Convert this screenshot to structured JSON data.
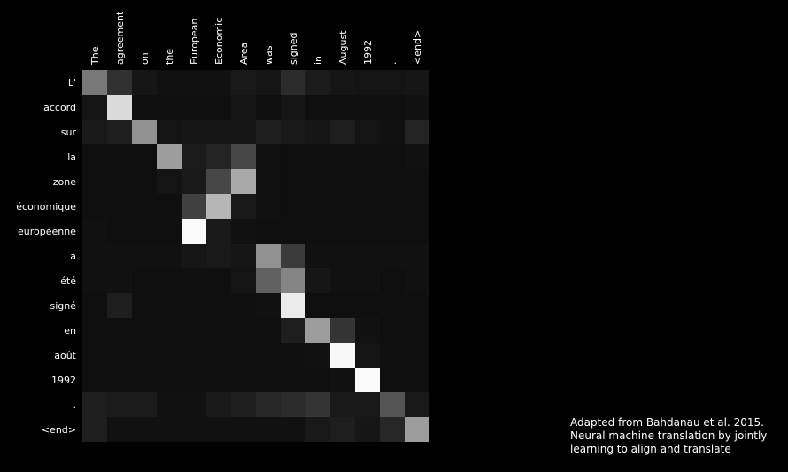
{
  "chart_data": {
    "type": "heatmap",
    "title": "",
    "x_categories": [
      "The",
      "agreement",
      "on",
      "the",
      "European",
      "Economic",
      "Area",
      "was",
      "signed",
      "in",
      "August",
      "1992",
      ".",
      "<end>"
    ],
    "y_categories": [
      "L'",
      "accord",
      "sur",
      "la",
      "zone",
      "économique",
      "européenne",
      "a",
      "été",
      "signé",
      "en",
      "août",
      "1992",
      ".",
      "<end>"
    ],
    "value_range": [
      0,
      1
    ],
    "colormap": "grayscale (black = 0, white = 1)",
    "values": [
      [
        0.45,
        0.16,
        0.05,
        0.03,
        0.03,
        0.03,
        0.06,
        0.05,
        0.14,
        0.07,
        0.05,
        0.04,
        0.04,
        0.05
      ],
      [
        0.04,
        0.85,
        0.02,
        0.02,
        0.02,
        0.02,
        0.04,
        0.02,
        0.05,
        0.02,
        0.02,
        0.02,
        0.02,
        0.03
      ],
      [
        0.06,
        0.08,
        0.55,
        0.04,
        0.05,
        0.05,
        0.05,
        0.08,
        0.06,
        0.05,
        0.08,
        0.04,
        0.03,
        0.1
      ],
      [
        0.02,
        0.02,
        0.02,
        0.6,
        0.07,
        0.1,
        0.25,
        0.03,
        0.02,
        0.02,
        0.02,
        0.02,
        0.02,
        0.03
      ],
      [
        0.02,
        0.02,
        0.02,
        0.04,
        0.06,
        0.25,
        0.65,
        0.03,
        0.02,
        0.02,
        0.02,
        0.02,
        0.02,
        0.02
      ],
      [
        0.02,
        0.02,
        0.02,
        0.02,
        0.22,
        0.7,
        0.06,
        0.03,
        0.02,
        0.02,
        0.02,
        0.02,
        0.02,
        0.02
      ],
      [
        0.03,
        0.02,
        0.02,
        0.02,
        0.98,
        0.06,
        0.03,
        0.02,
        0.02,
        0.02,
        0.02,
        0.02,
        0.02,
        0.02
      ],
      [
        0.03,
        0.03,
        0.03,
        0.03,
        0.05,
        0.06,
        0.05,
        0.55,
        0.2,
        0.03,
        0.03,
        0.03,
        0.03,
        0.03
      ],
      [
        0.03,
        0.03,
        0.02,
        0.02,
        0.02,
        0.02,
        0.04,
        0.35,
        0.5,
        0.05,
        0.03,
        0.03,
        0.02,
        0.03
      ],
      [
        0.02,
        0.08,
        0.02,
        0.02,
        0.02,
        0.02,
        0.02,
        0.03,
        0.92,
        0.02,
        0.02,
        0.02,
        0.02,
        0.02
      ],
      [
        0.02,
        0.02,
        0.02,
        0.02,
        0.02,
        0.02,
        0.02,
        0.02,
        0.08,
        0.6,
        0.17,
        0.03,
        0.02,
        0.02
      ],
      [
        0.02,
        0.02,
        0.02,
        0.02,
        0.02,
        0.02,
        0.02,
        0.02,
        0.02,
        0.03,
        0.97,
        0.04,
        0.02,
        0.02
      ],
      [
        0.02,
        0.02,
        0.02,
        0.02,
        0.02,
        0.02,
        0.02,
        0.02,
        0.02,
        0.02,
        0.03,
        0.98,
        0.02,
        0.02
      ],
      [
        0.08,
        0.07,
        0.07,
        0.03,
        0.03,
        0.06,
        0.08,
        0.12,
        0.14,
        0.17,
        0.06,
        0.06,
        0.3,
        0.06
      ],
      [
        0.08,
        0.03,
        0.03,
        0.03,
        0.03,
        0.03,
        0.03,
        0.03,
        0.03,
        0.06,
        0.08,
        0.05,
        0.12,
        0.6
      ]
    ],
    "grid": false,
    "legend": "none",
    "colors": {
      "background": "#000000",
      "text": "#ffffff"
    }
  },
  "citation": {
    "line1": "Adapted from Bahdanau et al. 2015.",
    "line2": "Neural machine translation by jointly",
    "line3": "learning to align and translate"
  }
}
